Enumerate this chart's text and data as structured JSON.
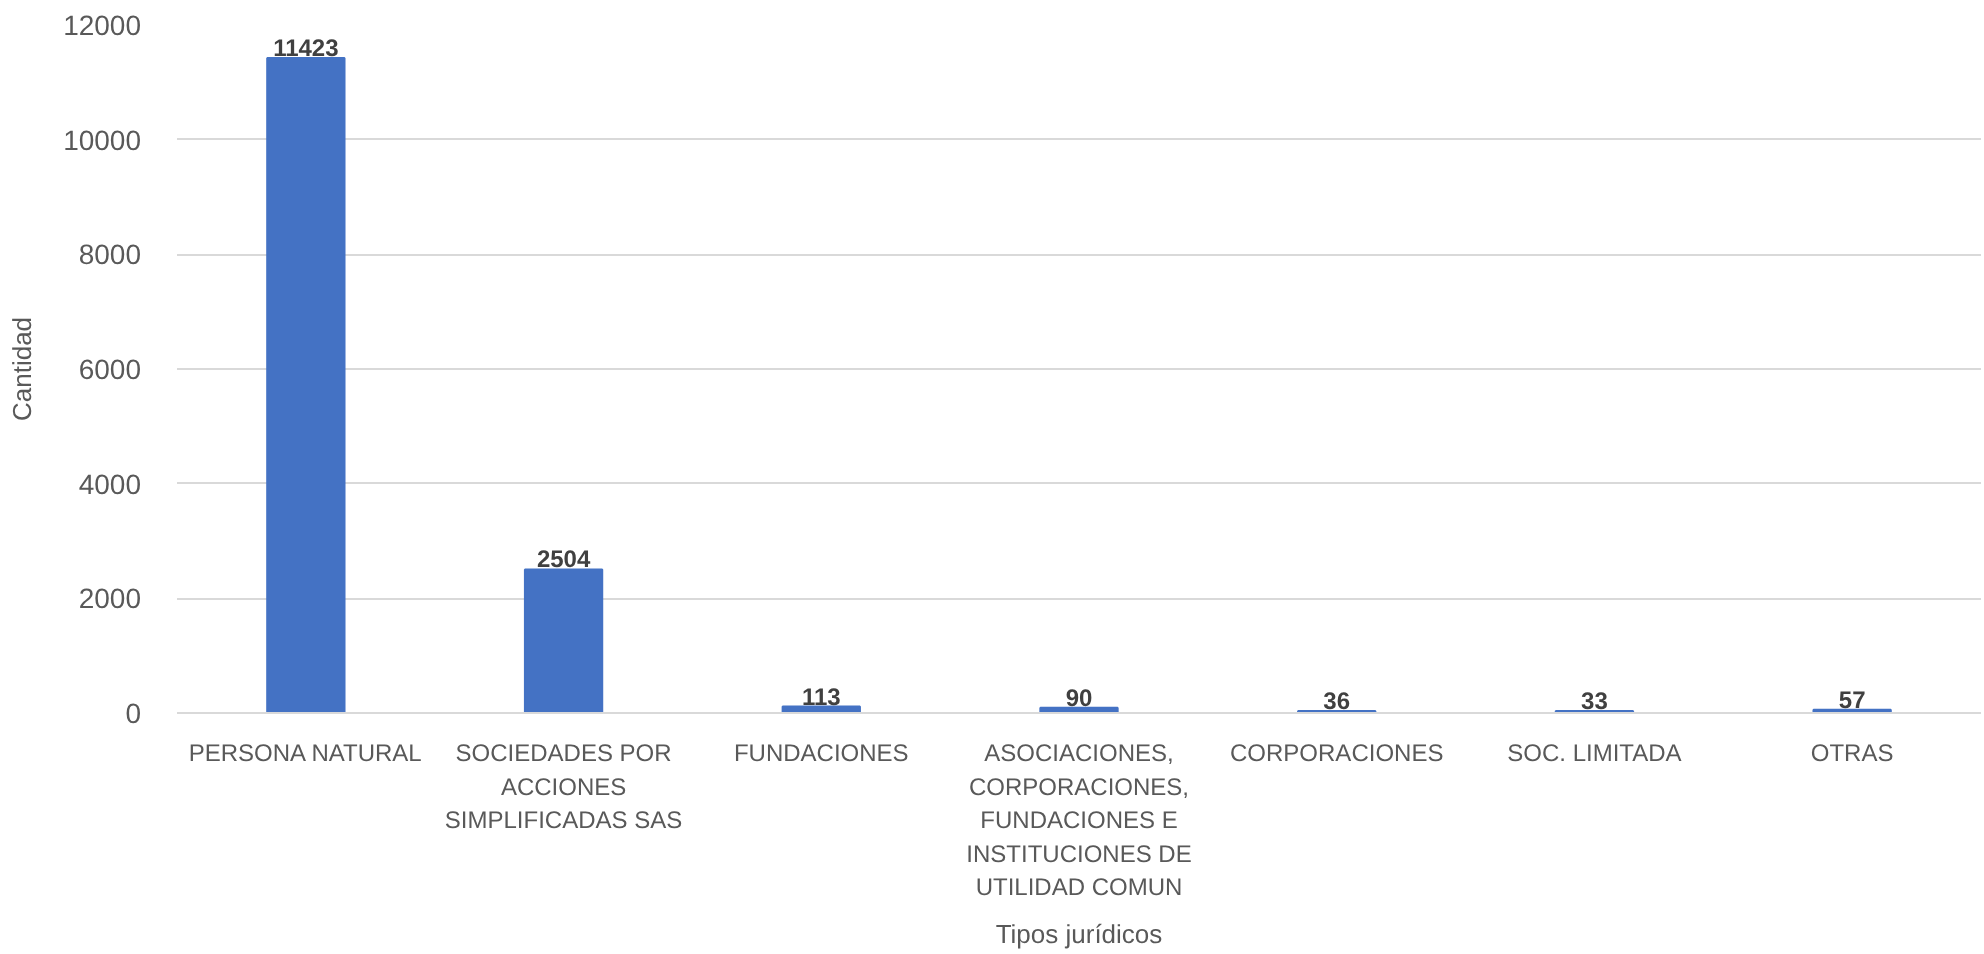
{
  "chart_data": {
    "type": "bar",
    "xlabel": "Tipos jurídicos",
    "ylabel": "Cantidad",
    "categories": [
      "PERSONA NATURAL",
      "SOCIEDADES POR ACCIONES SIMPLIFICADAS SAS",
      "FUNDACIONES",
      "ASOCIACIONES, CORPORACIONES, FUNDACIONES E INSTITUCIONES DE UTILIDAD COMUN",
      "CORPORACIONES",
      "SOC. LIMITADA",
      "OTRAS"
    ],
    "values": [
      11423,
      2504,
      113,
      90,
      36,
      33,
      57
    ],
    "color": "#4472c4",
    "ylim": [
      0,
      12000
    ],
    "yticks": [
      0,
      2000,
      4000,
      6000,
      8000,
      10000,
      12000
    ],
    "grid": "y",
    "data_labels": true
  }
}
